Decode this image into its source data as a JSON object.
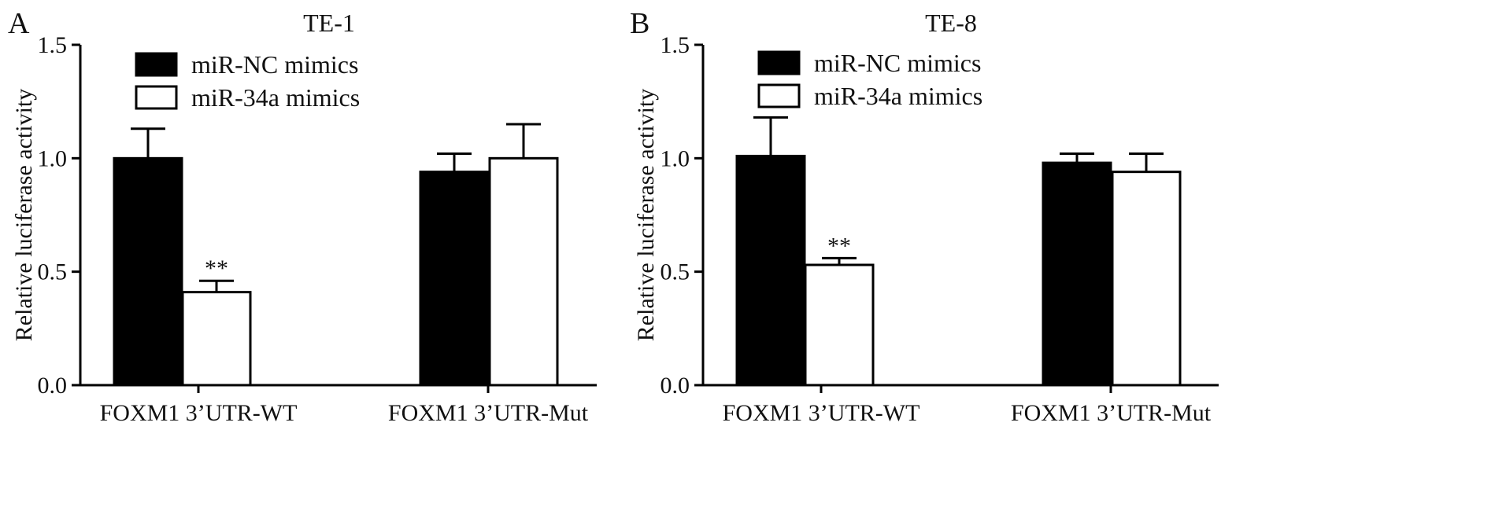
{
  "chart_data": [
    {
      "type": "bar",
      "panel_label": "A",
      "title": "TE-1",
      "xlabel": "",
      "ylabel": "Relative luciferase activity",
      "ylim": [
        0,
        1.5
      ],
      "yticks": [
        "0.0",
        "0.5",
        "1.0",
        "1.5"
      ],
      "categories": [
        "FOXM1  3’UTR-WT",
        "FOXM1  3’UTR-Mut"
      ],
      "series": [
        {
          "name": "miR-NC mimics",
          "fill": "#000000",
          "values": [
            1.0,
            0.94
          ],
          "error": [
            0.13,
            0.08
          ]
        },
        {
          "name": "miR-34a mimics",
          "fill": "#ffffff",
          "values": [
            0.41,
            1.0
          ],
          "error": [
            0.05,
            0.15
          ]
        }
      ],
      "annotations": [
        {
          "series": 1,
          "category": 0,
          "text": "**"
        }
      ],
      "legend": "top-left"
    },
    {
      "type": "bar",
      "panel_label": "B",
      "title": "TE-8",
      "xlabel": "",
      "ylabel": "Relative luciferase activity",
      "ylim": [
        0,
        1.5
      ],
      "yticks": [
        "0.0",
        "0.5",
        "1.0",
        "1.5"
      ],
      "categories": [
        "FOXM1  3’UTR-WT",
        "FOXM1  3’UTR-Mut"
      ],
      "series": [
        {
          "name": "miR-NC mimics",
          "fill": "#000000",
          "values": [
            1.01,
            0.98
          ],
          "error": [
            0.17,
            0.04
          ]
        },
        {
          "name": "miR-34a mimics",
          "fill": "#ffffff",
          "values": [
            0.53,
            0.94
          ],
          "error": [
            0.03,
            0.08
          ]
        }
      ],
      "annotations": [
        {
          "series": 1,
          "category": 0,
          "text": "**"
        }
      ],
      "legend": "top-left"
    }
  ]
}
